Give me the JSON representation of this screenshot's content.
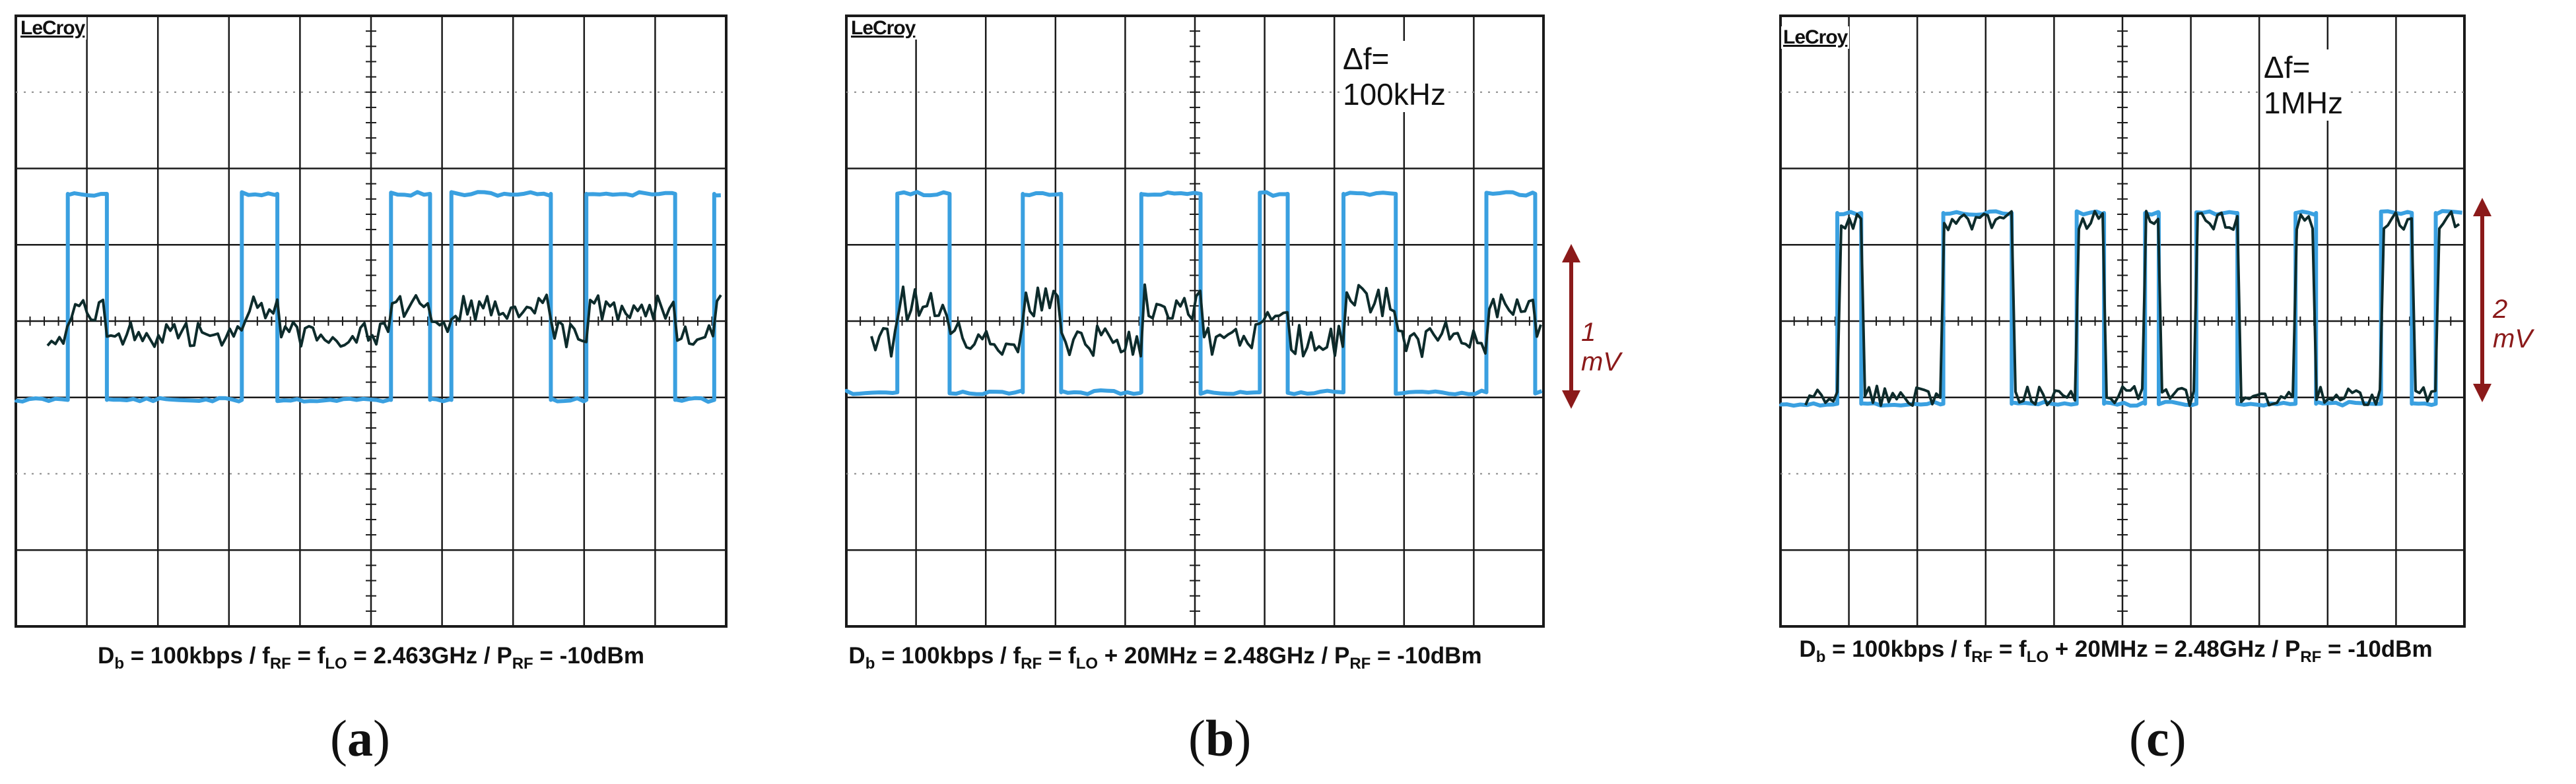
{
  "panels": [
    {
      "id": "a",
      "brand": "LeCroy",
      "delta_f": "",
      "caption_parts": [
        "D",
        "b",
        " = 100kbps / f",
        "RF",
        " = f",
        "LO",
        " = 2.463GHz / P",
        "RF",
        " = -10dBm"
      ],
      "letter": "a",
      "amplitude": ""
    },
    {
      "id": "b",
      "brand": "LeCroy",
      "delta_f": "Δf= 100kHz",
      "caption_parts": [
        "D",
        "b",
        " = 100kbps / f",
        "RF",
        " = f",
        "LO",
        " + 20MHz = 2.48GHz / P",
        "RF",
        " = -10dBm"
      ],
      "letter": "b",
      "amplitude": "1 mV"
    },
    {
      "id": "c",
      "brand": "LeCroy",
      "delta_f": "Δf= 1MHz",
      "caption_parts": [
        "D",
        "b",
        " = 100kbps / f",
        "RF",
        " = f",
        "LO",
        " + 20MHz = 2.48GHz / P",
        "RF",
        " = -10dBm"
      ],
      "letter": "c",
      "amplitude": "2 mV"
    }
  ],
  "colors": {
    "grid": "#1a1a1a",
    "digital_trace": "#3aa0e0",
    "demod_trace": "#0d2b2b",
    "annotation": "#8b1a1a"
  }
}
